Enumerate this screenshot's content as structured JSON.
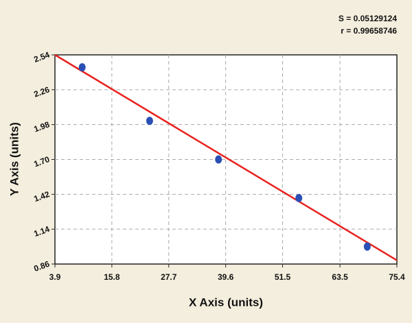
{
  "chart_data": {
    "type": "scatter",
    "x_label": "X Axis (units)",
    "y_label": "Y Axis (units)",
    "annotations": [
      "S = 0.05129124",
      "r = 0.99658746"
    ],
    "series": [
      {
        "color": "#2a4fb5",
        "x": [
          9.6,
          23.7,
          38.1,
          54.9,
          69.2
        ],
        "values": [
          2.44,
          2.01,
          1.7,
          1.39,
          1.0
        ]
      }
    ],
    "fit": {
      "color": "#e8201c",
      "x": [
        3.9,
        75.4
      ],
      "values": [
        2.54,
        0.89
      ]
    },
    "xlim": [
      3.9,
      75.4
    ],
    "xticks": [
      3.9,
      15.8,
      27.7,
      39.6,
      51.5,
      63.5,
      75.4
    ],
    "ylim": [
      0.86,
      2.54
    ],
    "yticks": [
      0.86,
      1.14,
      1.42,
      {
        "value": 1.7,
        "label": "1.70"
      },
      1.98,
      2.26,
      2.54
    ],
    "grid": true
  }
}
